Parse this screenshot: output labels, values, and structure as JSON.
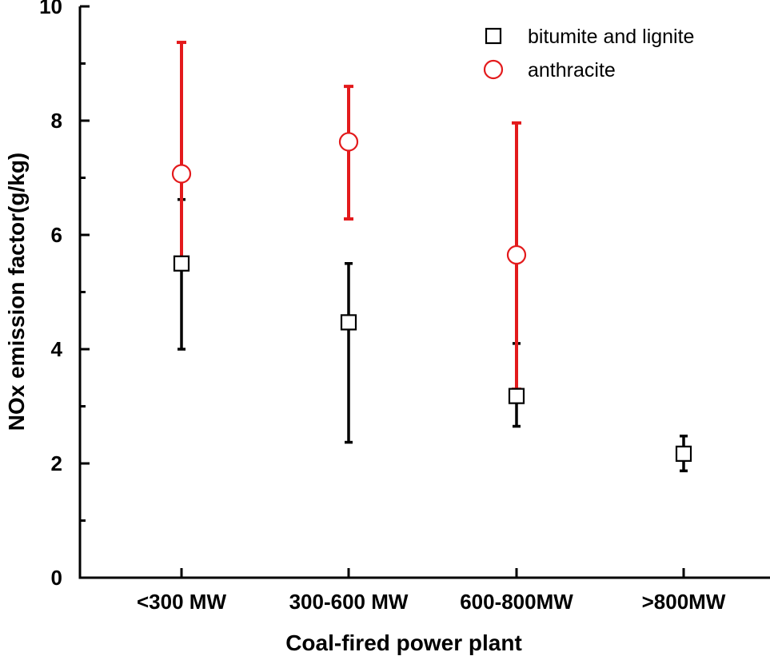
{
  "chart_data": {
    "type": "scatter",
    "title": "",
    "xlabel": "Coal-fired power plant",
    "ylabel": "NOx emission factor(g/kg)",
    "ylim": [
      0,
      10
    ],
    "yticks": [
      "0",
      "2",
      "4",
      "6",
      "8",
      "10"
    ],
    "categories": [
      "<300 MW",
      "300-600 MW",
      "600-800MW",
      ">800MW"
    ],
    "grid": false,
    "legend_position": "top-right",
    "series": [
      {
        "name": "bitumite and lignite",
        "marker": "square",
        "color": "#000000",
        "points": [
          {
            "category": "<300 MW",
            "y": 5.5,
            "low": 4.0,
            "high": 6.62
          },
          {
            "category": "300-600 MW",
            "y": 4.47,
            "low": 2.37,
            "high": 5.5
          },
          {
            "category": "600-800MW",
            "y": 3.18,
            "low": 2.65,
            "high": 4.1
          },
          {
            "category": ">800MW",
            "y": 2.17,
            "low": 1.87,
            "high": 2.48
          }
        ]
      },
      {
        "name": "anthracite",
        "marker": "circle",
        "color": "#e31a1c",
        "points": [
          {
            "category": "<300 MW",
            "y": 7.07,
            "low": 5.5,
            "high": 9.37
          },
          {
            "category": "300-600 MW",
            "y": 7.63,
            "low": 6.28,
            "high": 8.6
          },
          {
            "category": "600-800MW",
            "y": 5.65,
            "low": 3.3,
            "high": 7.96
          }
        ]
      }
    ]
  }
}
